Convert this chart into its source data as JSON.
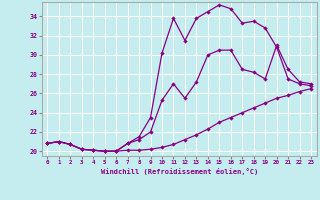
{
  "xlabel": "Windchill (Refroidissement éolien,°C)",
  "ylabel": "",
  "xlim": [
    -0.5,
    23.5
  ],
  "ylim": [
    19.5,
    35.5
  ],
  "yticks": [
    20,
    22,
    24,
    26,
    28,
    30,
    32,
    34
  ],
  "xticks": [
    0,
    1,
    2,
    3,
    4,
    5,
    6,
    7,
    8,
    9,
    10,
    11,
    12,
    13,
    14,
    15,
    16,
    17,
    18,
    19,
    20,
    21,
    22,
    23
  ],
  "bg_color": "#c5edf0",
  "line_color": "#880088",
  "grid_color": "#ffffff",
  "line1_x": [
    0,
    1,
    2,
    3,
    4,
    5,
    6,
    7,
    8,
    9,
    10,
    11,
    12,
    13,
    14,
    15,
    16,
    17,
    18,
    19,
    20,
    21,
    22,
    23
  ],
  "line1_y": [
    20.8,
    21.0,
    20.7,
    20.2,
    20.1,
    20.0,
    20.0,
    20.1,
    20.1,
    20.2,
    20.4,
    20.7,
    21.2,
    21.7,
    22.3,
    23.0,
    23.5,
    24.0,
    24.5,
    25.0,
    25.5,
    25.8,
    26.2,
    26.5
  ],
  "line2_x": [
    0,
    1,
    2,
    3,
    4,
    5,
    6,
    7,
    8,
    9,
    10,
    11,
    12,
    13,
    14,
    15,
    16,
    17,
    18,
    19,
    20,
    21,
    22,
    23
  ],
  "line2_y": [
    20.8,
    21.0,
    20.7,
    20.2,
    20.1,
    20.0,
    20.0,
    20.8,
    21.2,
    22.0,
    25.3,
    27.0,
    25.5,
    27.2,
    30.0,
    30.5,
    30.5,
    28.5,
    28.2,
    27.5,
    31.0,
    28.5,
    27.2,
    27.0
  ],
  "line3_x": [
    0,
    1,
    2,
    3,
    4,
    5,
    6,
    7,
    8,
    9,
    10,
    11,
    12,
    13,
    14,
    15,
    16,
    17,
    18,
    19,
    20,
    21,
    22,
    23
  ],
  "line3_y": [
    20.8,
    21.0,
    20.7,
    20.2,
    20.1,
    20.0,
    20.0,
    20.8,
    21.5,
    23.5,
    30.2,
    33.8,
    31.5,
    33.8,
    34.5,
    35.2,
    34.8,
    33.3,
    33.5,
    32.8,
    30.8,
    27.5,
    27.0,
    26.8
  ],
  "marker": "D",
  "marker_size": 2.2,
  "linewidth": 0.9
}
